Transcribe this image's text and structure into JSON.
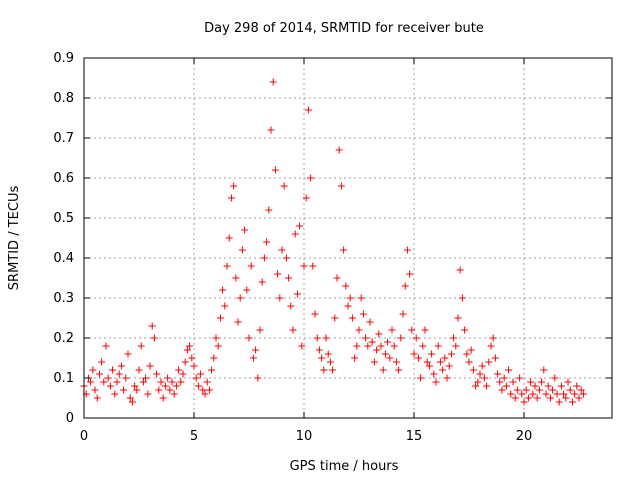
{
  "chart_data": {
    "type": "scatter",
    "title": "Day 298 of 2014, SRMTID for receiver bute",
    "xlabel": "GPS time / hours",
    "ylabel": "SRMTID / TECUs",
    "xlim": [
      0,
      24
    ],
    "ylim": [
      0,
      0.9
    ],
    "x_ticks": [
      0,
      5,
      10,
      15,
      20
    ],
    "y_ticks": [
      0,
      0.1,
      0.2,
      0.3,
      0.4,
      0.5,
      0.6,
      0.7,
      0.8,
      0.9
    ],
    "x_tick_labels": [
      "0",
      "5",
      "10",
      "15",
      "20"
    ],
    "y_tick_labels": [
      "0",
      "0.1",
      "0.2",
      "0.3",
      "0.4",
      "0.5",
      "0.6",
      "0.7",
      "0.8",
      "0.9"
    ],
    "grid": true,
    "marker": "+",
    "color": "#ff0000",
    "series": [
      {
        "name": "SRMTID",
        "points": [
          [
            0.0,
            0.08
          ],
          [
            0.1,
            0.06
          ],
          [
            0.2,
            0.1
          ],
          [
            0.3,
            0.09
          ],
          [
            0.4,
            0.12
          ],
          [
            0.5,
            0.07
          ],
          [
            0.6,
            0.05
          ],
          [
            0.7,
            0.11
          ],
          [
            0.8,
            0.14
          ],
          [
            0.9,
            0.09
          ],
          [
            1.0,
            0.18
          ],
          [
            1.1,
            0.1
          ],
          [
            1.2,
            0.08
          ],
          [
            1.3,
            0.12
          ],
          [
            1.4,
            0.06
          ],
          [
            1.5,
            0.09
          ],
          [
            1.6,
            0.11
          ],
          [
            1.7,
            0.13
          ],
          [
            1.8,
            0.07
          ],
          [
            1.9,
            0.1
          ],
          [
            2.0,
            0.16
          ],
          [
            2.1,
            0.05
          ],
          [
            2.2,
            0.04
          ],
          [
            2.3,
            0.08
          ],
          [
            2.4,
            0.07
          ],
          [
            2.5,
            0.12
          ],
          [
            2.6,
            0.18
          ],
          [
            2.7,
            0.09
          ],
          [
            2.8,
            0.1
          ],
          [
            2.9,
            0.06
          ],
          [
            3.0,
            0.13
          ],
          [
            3.1,
            0.23
          ],
          [
            3.2,
            0.2
          ],
          [
            3.3,
            0.11
          ],
          [
            3.4,
            0.07
          ],
          [
            3.5,
            0.09
          ],
          [
            3.6,
            0.05
          ],
          [
            3.7,
            0.08
          ],
          [
            3.8,
            0.1
          ],
          [
            3.9,
            0.07
          ],
          [
            4.0,
            0.09
          ],
          [
            4.1,
            0.06
          ],
          [
            4.2,
            0.08
          ],
          [
            4.3,
            0.12
          ],
          [
            4.4,
            0.09
          ],
          [
            4.5,
            0.11
          ],
          [
            4.6,
            0.14
          ],
          [
            4.7,
            0.17
          ],
          [
            4.8,
            0.18
          ],
          [
            4.9,
            0.15
          ],
          [
            5.0,
            0.13
          ],
          [
            5.1,
            0.1
          ],
          [
            5.2,
            0.08
          ],
          [
            5.3,
            0.11
          ],
          [
            5.4,
            0.07
          ],
          [
            5.5,
            0.06
          ],
          [
            5.6,
            0.09
          ],
          [
            5.7,
            0.07
          ],
          [
            5.8,
            0.12
          ],
          [
            5.9,
            0.15
          ],
          [
            6.0,
            0.2
          ],
          [
            6.1,
            0.18
          ],
          [
            6.2,
            0.25
          ],
          [
            6.3,
            0.32
          ],
          [
            6.4,
            0.28
          ],
          [
            6.5,
            0.38
          ],
          [
            6.6,
            0.45
          ],
          [
            6.7,
            0.55
          ],
          [
            6.8,
            0.58
          ],
          [
            6.9,
            0.35
          ],
          [
            7.0,
            0.24
          ],
          [
            7.1,
            0.3
          ],
          [
            7.2,
            0.42
          ],
          [
            7.3,
            0.47
          ],
          [
            7.4,
            0.32
          ],
          [
            7.5,
            0.2
          ],
          [
            7.6,
            0.38
          ],
          [
            7.7,
            0.15
          ],
          [
            7.8,
            0.17
          ],
          [
            7.9,
            0.1
          ],
          [
            8.0,
            0.22
          ],
          [
            8.1,
            0.34
          ],
          [
            8.2,
            0.4
          ],
          [
            8.3,
            0.44
          ],
          [
            8.4,
            0.52
          ],
          [
            8.5,
            0.72
          ],
          [
            8.6,
            0.84
          ],
          [
            8.7,
            0.62
          ],
          [
            8.8,
            0.36
          ],
          [
            8.9,
            0.3
          ],
          [
            9.0,
            0.42
          ],
          [
            9.1,
            0.58
          ],
          [
            9.2,
            0.4
          ],
          [
            9.3,
            0.35
          ],
          [
            9.4,
            0.28
          ],
          [
            9.5,
            0.22
          ],
          [
            9.6,
            0.46
          ],
          [
            9.7,
            0.31
          ],
          [
            9.8,
            0.48
          ],
          [
            9.9,
            0.18
          ],
          [
            10.0,
            0.38
          ],
          [
            10.1,
            0.55
          ],
          [
            10.2,
            0.77
          ],
          [
            10.3,
            0.6
          ],
          [
            10.4,
            0.38
          ],
          [
            10.5,
            0.26
          ],
          [
            10.6,
            0.2
          ],
          [
            10.7,
            0.17
          ],
          [
            10.8,
            0.15
          ],
          [
            10.9,
            0.12
          ],
          [
            11.0,
            0.2
          ],
          [
            11.1,
            0.16
          ],
          [
            11.2,
            0.14
          ],
          [
            11.3,
            0.12
          ],
          [
            11.4,
            0.25
          ],
          [
            11.5,
            0.35
          ],
          [
            11.6,
            0.67
          ],
          [
            11.7,
            0.58
          ],
          [
            11.8,
            0.42
          ],
          [
            11.9,
            0.33
          ],
          [
            12.0,
            0.28
          ],
          [
            12.1,
            0.3
          ],
          [
            12.2,
            0.25
          ],
          [
            12.3,
            0.15
          ],
          [
            12.4,
            0.18
          ],
          [
            12.5,
            0.22
          ],
          [
            12.6,
            0.3
          ],
          [
            12.7,
            0.26
          ],
          [
            12.8,
            0.2
          ],
          [
            12.9,
            0.18
          ],
          [
            13.0,
            0.24
          ],
          [
            13.1,
            0.19
          ],
          [
            13.2,
            0.14
          ],
          [
            13.3,
            0.17
          ],
          [
            13.4,
            0.21
          ],
          [
            13.5,
            0.18
          ],
          [
            13.6,
            0.12
          ],
          [
            13.7,
            0.16
          ],
          [
            13.8,
            0.19
          ],
          [
            13.9,
            0.15
          ],
          [
            14.0,
            0.22
          ],
          [
            14.1,
            0.18
          ],
          [
            14.2,
            0.14
          ],
          [
            14.3,
            0.12
          ],
          [
            14.4,
            0.2
          ],
          [
            14.5,
            0.26
          ],
          [
            14.6,
            0.33
          ],
          [
            14.7,
            0.42
          ],
          [
            14.8,
            0.36
          ],
          [
            14.9,
            0.22
          ],
          [
            15.0,
            0.16
          ],
          [
            15.1,
            0.2
          ],
          [
            15.2,
            0.15
          ],
          [
            15.3,
            0.1
          ],
          [
            15.4,
            0.18
          ],
          [
            15.5,
            0.22
          ],
          [
            15.6,
            0.14
          ],
          [
            15.7,
            0.13
          ],
          [
            15.8,
            0.16
          ],
          [
            15.9,
            0.11
          ],
          [
            16.0,
            0.09
          ],
          [
            16.1,
            0.18
          ],
          [
            16.2,
            0.14
          ],
          [
            16.3,
            0.12
          ],
          [
            16.4,
            0.15
          ],
          [
            16.5,
            0.1
          ],
          [
            16.6,
            0.13
          ],
          [
            16.7,
            0.16
          ],
          [
            16.8,
            0.2
          ],
          [
            16.9,
            0.18
          ],
          [
            17.0,
            0.25
          ],
          [
            17.1,
            0.37
          ],
          [
            17.2,
            0.3
          ],
          [
            17.3,
            0.22
          ],
          [
            17.4,
            0.16
          ],
          [
            17.5,
            0.14
          ],
          [
            17.6,
            0.17
          ],
          [
            17.7,
            0.12
          ],
          [
            17.8,
            0.08
          ],
          [
            17.9,
            0.09
          ],
          [
            18.0,
            0.11
          ],
          [
            18.1,
            0.13
          ],
          [
            18.2,
            0.1
          ],
          [
            18.3,
            0.08
          ],
          [
            18.4,
            0.14
          ],
          [
            18.5,
            0.18
          ],
          [
            18.6,
            0.2
          ],
          [
            18.7,
            0.15
          ],
          [
            18.8,
            0.11
          ],
          [
            18.9,
            0.09
          ],
          [
            19.0,
            0.07
          ],
          [
            19.1,
            0.1
          ],
          [
            19.2,
            0.08
          ],
          [
            19.3,
            0.12
          ],
          [
            19.4,
            0.06
          ],
          [
            19.5,
            0.09
          ],
          [
            19.6,
            0.05
          ],
          [
            19.7,
            0.07
          ],
          [
            19.8,
            0.1
          ],
          [
            19.9,
            0.06
          ],
          [
            20.0,
            0.04
          ],
          [
            20.1,
            0.07
          ],
          [
            20.2,
            0.05
          ],
          [
            20.3,
            0.09
          ],
          [
            20.4,
            0.06
          ],
          [
            20.5,
            0.08
          ],
          [
            20.6,
            0.05
          ],
          [
            20.7,
            0.07
          ],
          [
            20.8,
            0.09
          ],
          [
            20.9,
            0.12
          ],
          [
            21.0,
            0.06
          ],
          [
            21.1,
            0.08
          ],
          [
            21.2,
            0.05
          ],
          [
            21.3,
            0.07
          ],
          [
            21.4,
            0.1
          ],
          [
            21.5,
            0.06
          ],
          [
            21.6,
            0.04
          ],
          [
            21.7,
            0.08
          ],
          [
            21.8,
            0.06
          ],
          [
            21.9,
            0.05
          ],
          [
            22.0,
            0.09
          ],
          [
            22.1,
            0.07
          ],
          [
            22.2,
            0.04
          ],
          [
            22.3,
            0.06
          ],
          [
            22.4,
            0.08
          ],
          [
            22.5,
            0.05
          ],
          [
            22.6,
            0.07
          ],
          [
            22.7,
            0.06
          ]
        ]
      }
    ]
  }
}
